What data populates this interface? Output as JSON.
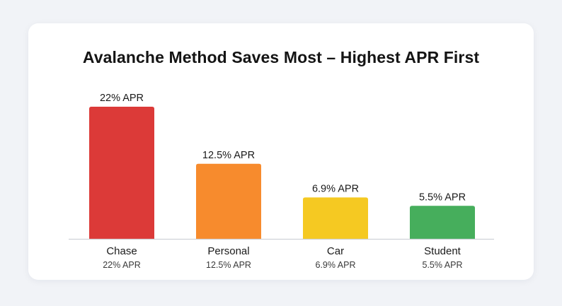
{
  "chart_data": {
    "type": "bar",
    "title": "Avalanche Method Saves Most – Highest APR First",
    "categories": [
      "Chase",
      "Personal",
      "Car",
      "Student"
    ],
    "values": [
      22,
      12.5,
      6.9,
      5.5
    ],
    "data_labels": [
      "22% APR",
      "12.5% APR",
      "6.9% APR",
      "5.5% APR"
    ],
    "sublabels": [
      "22% APR",
      "12.5% APR",
      "6.9% APR",
      "5.5% APR"
    ],
    "colors": [
      "#dc3a38",
      "#f78b2d",
      "#f5c922",
      "#46ae5c"
    ],
    "xlabel": "",
    "ylabel": "",
    "ylim": [
      0,
      22
    ],
    "grid": false,
    "legend": "none"
  }
}
